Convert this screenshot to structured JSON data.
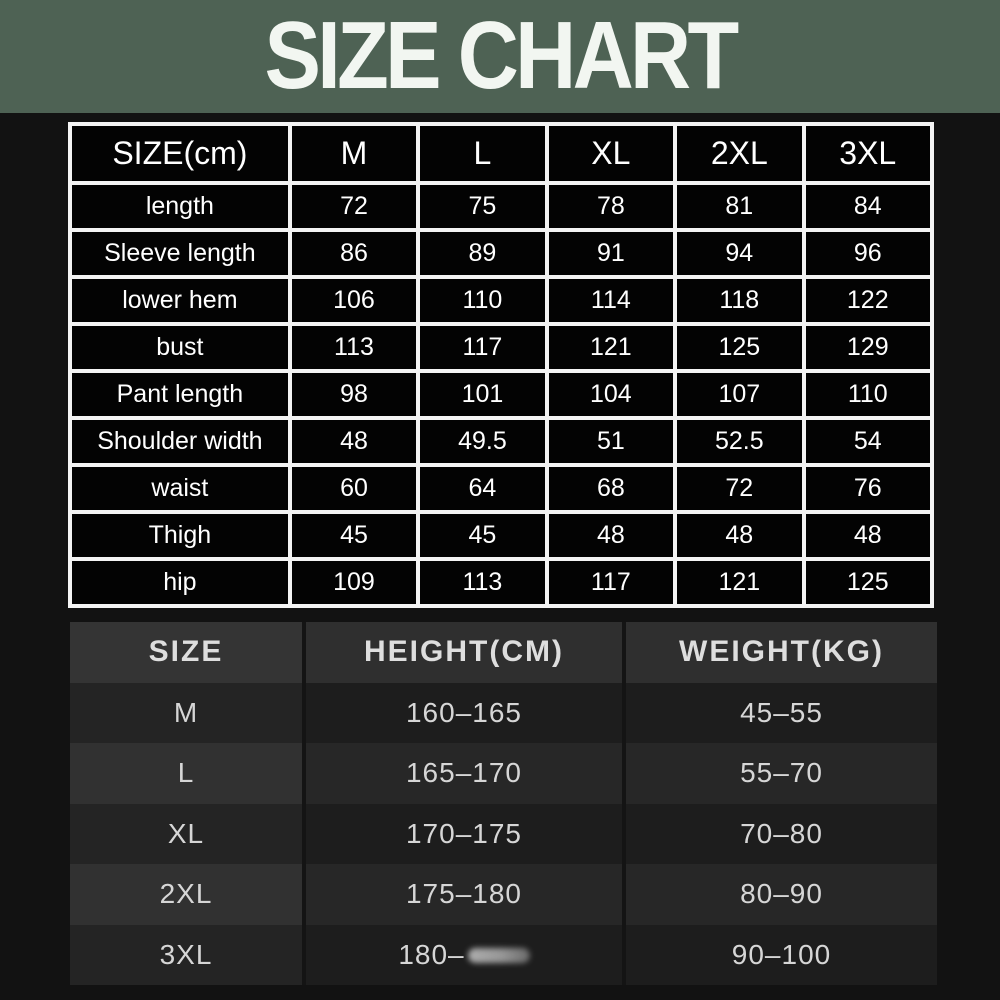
{
  "banner": {
    "title": "SIZE CHART"
  },
  "colors": {
    "banner_bg": "#4e6254",
    "banner_text": "#f2f6f1",
    "page_bg": "#121212",
    "grid_white": "#f4f4f4",
    "cell_black": "#030303",
    "t2_header_bg": "#2f2f2f",
    "t2_row_dark": "#1d1d1d",
    "t2_row_light": "#272727",
    "t2_text": "#d6d6d6"
  },
  "chart_data": [
    {
      "type": "table",
      "title": "SIZE CHART",
      "unit": "cm",
      "columns": [
        "SIZE(cm)",
        "M",
        "L",
        "XL",
        "2XL",
        "3XL"
      ],
      "rows": [
        [
          "length",
          "72",
          "75",
          "78",
          "81",
          "84"
        ],
        [
          "Sleeve length",
          "86",
          "89",
          "91",
          "94",
          "96"
        ],
        [
          "lower hem",
          "106",
          "110",
          "114",
          "118",
          "122"
        ],
        [
          "bust",
          "113",
          "117",
          "121",
          "125",
          "129"
        ],
        [
          "Pant length",
          "98",
          "101",
          "104",
          "107",
          "110"
        ],
        [
          "Shoulder width",
          "48",
          "49.5",
          "51",
          "52.5",
          "54"
        ],
        [
          "waist",
          "60",
          "64",
          "68",
          "72",
          "76"
        ],
        [
          "Thigh",
          "45",
          "45",
          "48",
          "48",
          "48"
        ],
        [
          "hip",
          "109",
          "113",
          "117",
          "121",
          "125"
        ]
      ]
    },
    {
      "type": "table",
      "columns": [
        "SIZE",
        "HEIGHT(CM)",
        "WEIGHT(KG)"
      ],
      "rows": [
        [
          "M",
          "160–165",
          "45–55"
        ],
        [
          "L",
          "165–170",
          "55–70"
        ],
        [
          "XL",
          "170–175",
          "70–80"
        ],
        [
          "2XL",
          "175–180",
          "80–90"
        ],
        [
          "3XL",
          "180–",
          "90–100"
        ]
      ],
      "annotation": "3XL height value is smudged/erased after 180–"
    }
  ]
}
